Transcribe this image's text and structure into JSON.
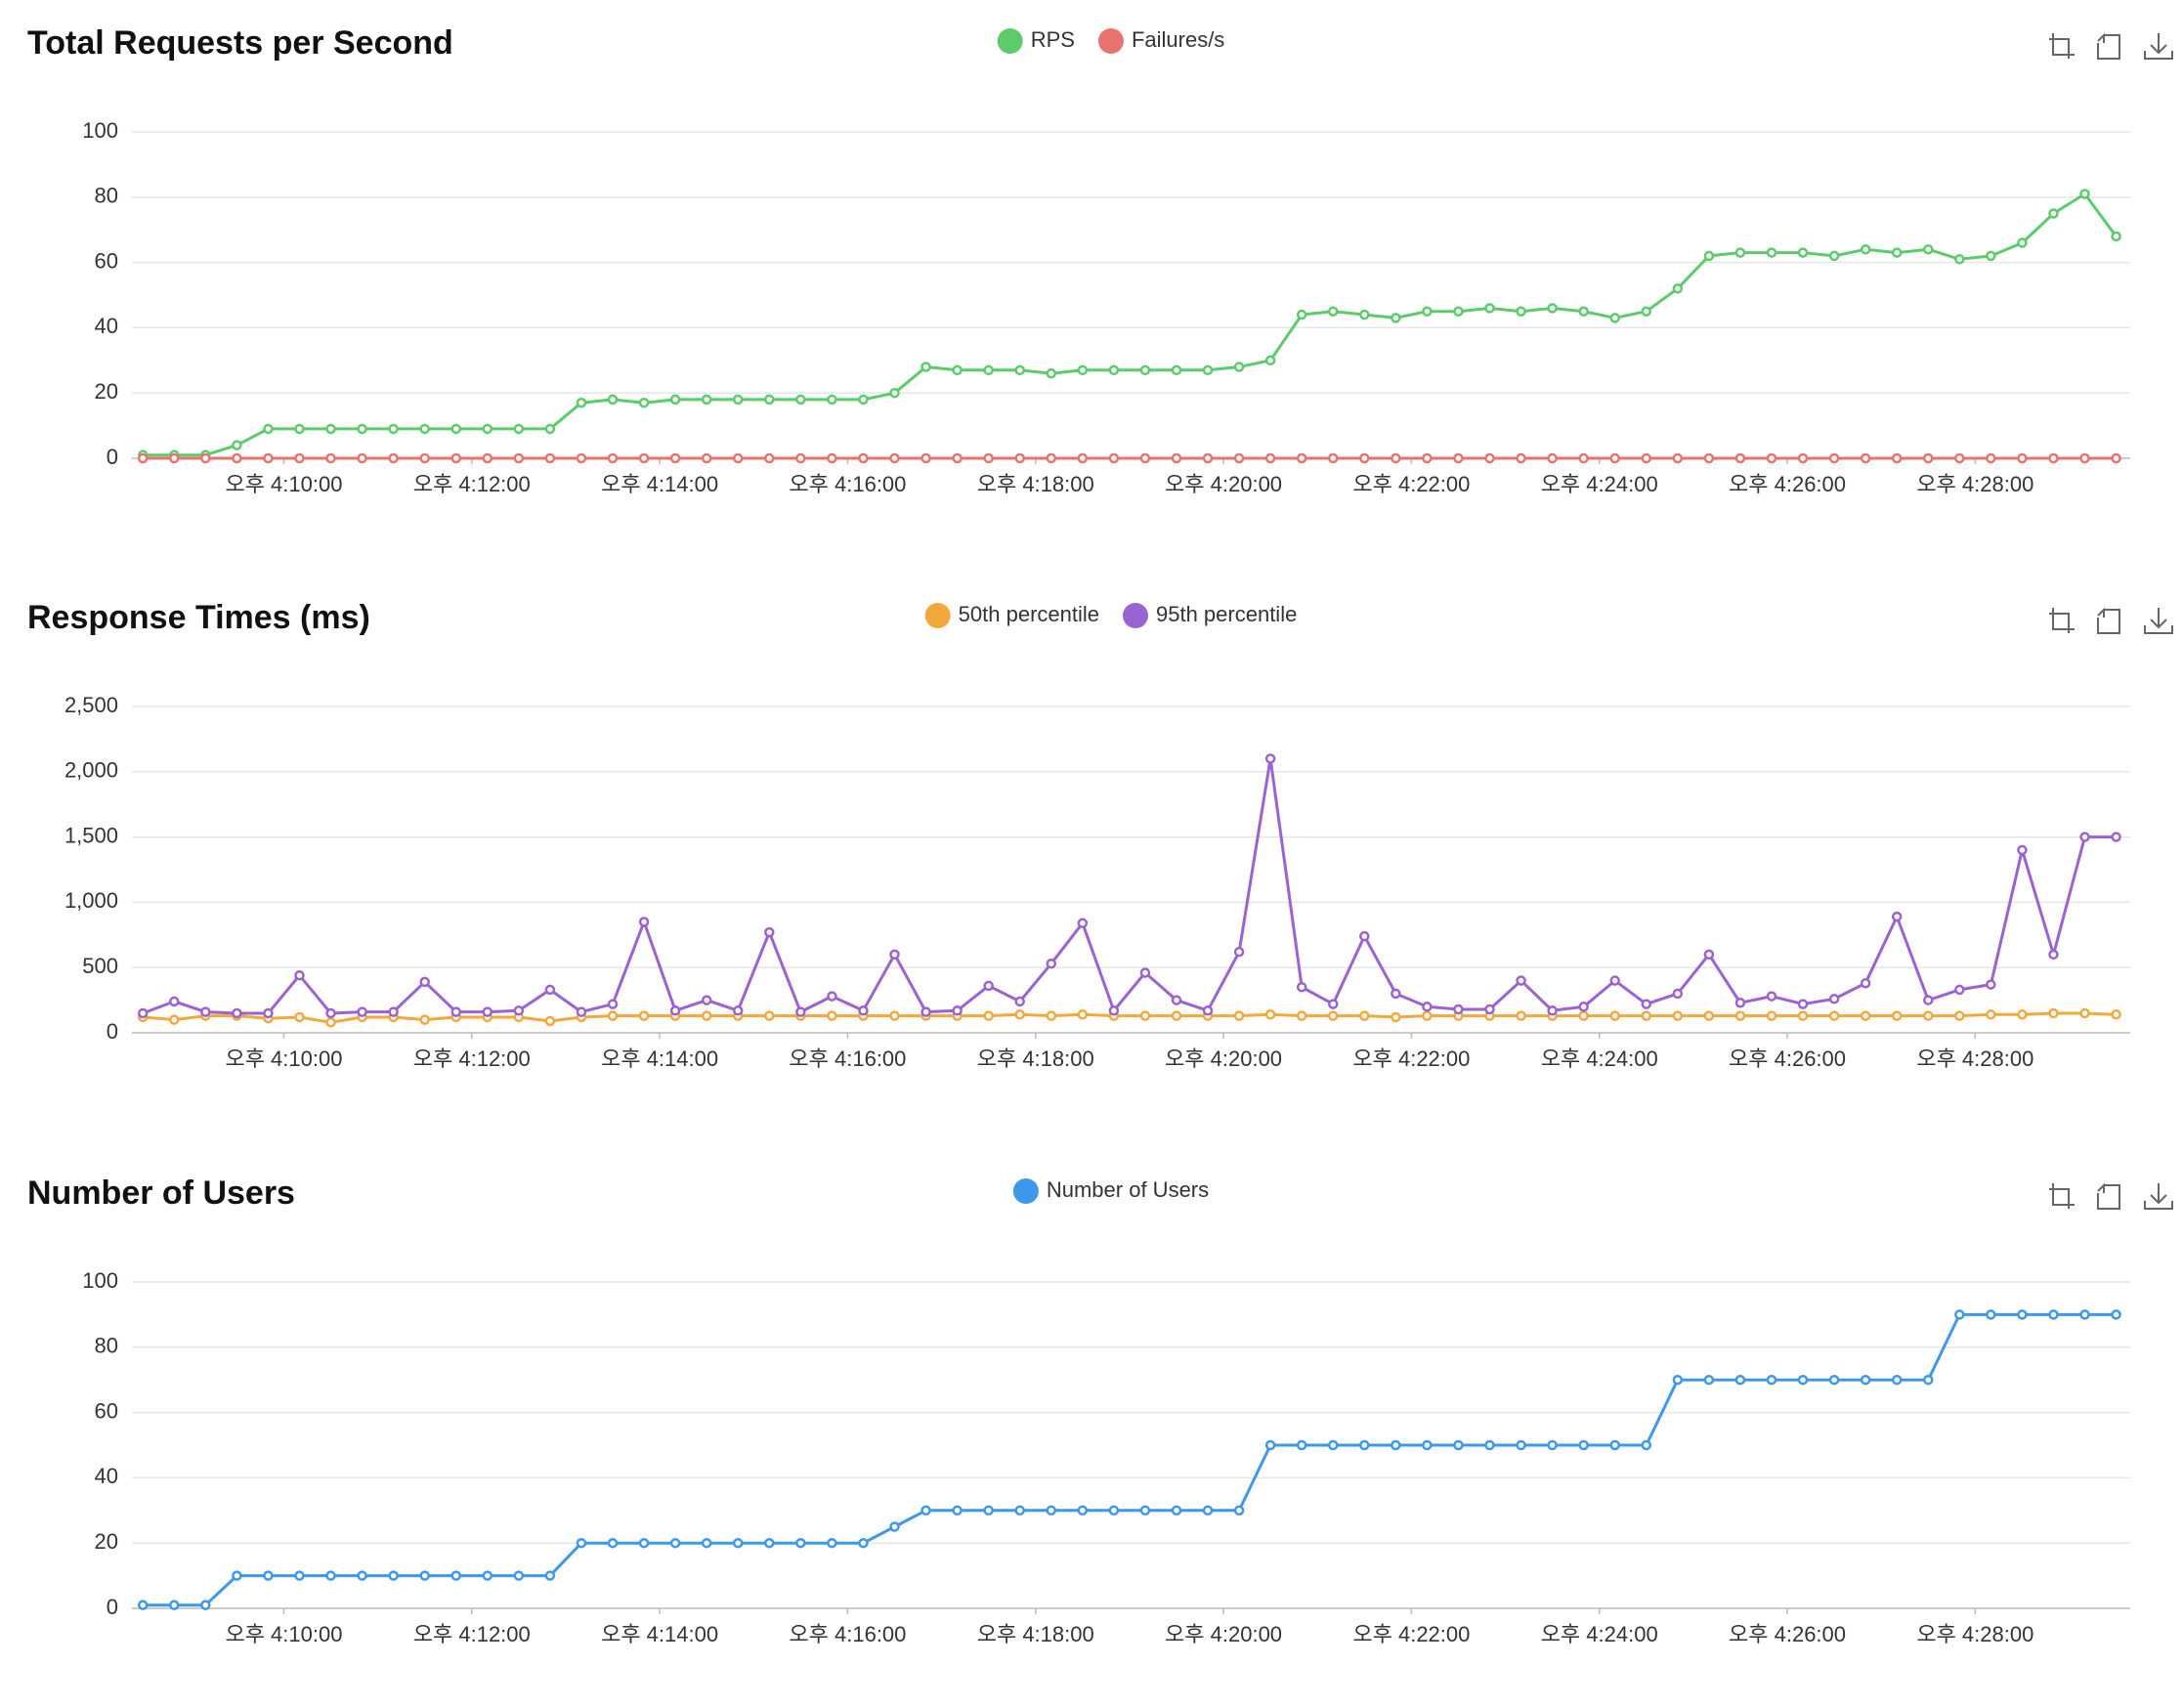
{
  "chart_data": [
    {
      "type": "line",
      "title": "Total Requests per Second",
      "x": [
        "16:08:30",
        "16:08:50",
        "16:09:10",
        "16:09:30",
        "16:09:50",
        "16:10:10",
        "16:10:30",
        "16:10:50",
        "16:11:10",
        "16:11:30",
        "16:11:50",
        "16:12:10",
        "16:12:30",
        "16:12:50",
        "16:13:10",
        "16:13:30",
        "16:13:50",
        "16:14:10",
        "16:14:30",
        "16:14:50",
        "16:15:10",
        "16:15:30",
        "16:15:50",
        "16:16:10",
        "16:16:30",
        "16:16:50",
        "16:17:10",
        "16:17:30",
        "16:17:50",
        "16:18:10",
        "16:18:30",
        "16:18:50",
        "16:19:10",
        "16:19:30",
        "16:19:50",
        "16:20:10",
        "16:20:30",
        "16:20:50",
        "16:21:10",
        "16:21:30",
        "16:21:50",
        "16:22:10",
        "16:22:30",
        "16:22:50",
        "16:23:10",
        "16:23:30",
        "16:23:50",
        "16:24:10",
        "16:24:30",
        "16:24:50",
        "16:25:10",
        "16:25:30",
        "16:25:50",
        "16:26:10",
        "16:26:30",
        "16:26:50",
        "16:27:10",
        "16:27:30",
        "16:27:50",
        "16:28:10",
        "16:28:30",
        "16:28:50",
        "16:29:10",
        "16:29:30"
      ],
      "series": [
        {
          "name": "RPS",
          "color": "#5ccb6a",
          "values": [
            1,
            1,
            1,
            4,
            9,
            9,
            9,
            9,
            9,
            9,
            9,
            9,
            9,
            9,
            17,
            18,
            17,
            18,
            18,
            18,
            18,
            18,
            18,
            18,
            20,
            28,
            27,
            27,
            27,
            26,
            27,
            27,
            27,
            27,
            27,
            28,
            30,
            44,
            45,
            44,
            43,
            45,
            45,
            46,
            45,
            46,
            45,
            43,
            45,
            52,
            62,
            63,
            63,
            63,
            62,
            64,
            63,
            64,
            61,
            62,
            66,
            75,
            81,
            68
          ]
        },
        {
          "name": "Failures/s",
          "color": "#e8736e",
          "values": [
            0,
            0,
            0,
            0,
            0,
            0,
            0,
            0,
            0,
            0,
            0,
            0,
            0,
            0,
            0,
            0,
            0,
            0,
            0,
            0,
            0,
            0,
            0,
            0,
            0,
            0,
            0,
            0,
            0,
            0,
            0,
            0,
            0,
            0,
            0,
            0,
            0,
            0,
            0,
            0,
            0,
            0,
            0,
            0,
            0,
            0,
            0,
            0,
            0,
            0,
            0,
            0,
            0,
            0,
            0,
            0,
            0,
            0,
            0,
            0,
            0,
            0,
            0,
            0
          ]
        }
      ],
      "xlim": [
        "16:08:23",
        "16:29:39"
      ],
      "xticks": [
        {
          "value": "16:10:00",
          "label": "오후 4:10:00"
        },
        {
          "value": "16:12:00",
          "label": "오후 4:12:00"
        },
        {
          "value": "16:14:00",
          "label": "오후 4:14:00"
        },
        {
          "value": "16:16:00",
          "label": "오후 4:16:00"
        },
        {
          "value": "16:18:00",
          "label": "오후 4:18:00"
        },
        {
          "value": "16:20:00",
          "label": "오후 4:20:00"
        },
        {
          "value": "16:22:00",
          "label": "오후 4:22:00"
        },
        {
          "value": "16:24:00",
          "label": "오후 4:24:00"
        },
        {
          "value": "16:26:00",
          "label": "오후 4:26:00"
        },
        {
          "value": "16:28:00",
          "label": "오후 4:28:00"
        }
      ],
      "ylim": [
        0,
        100
      ],
      "yticks": [
        0,
        20,
        40,
        60,
        80,
        100
      ],
      "grid": true
    },
    {
      "type": "line",
      "title": "Response Times (ms)",
      "x": [
        "16:08:30",
        "16:08:50",
        "16:09:10",
        "16:09:30",
        "16:09:50",
        "16:10:10",
        "16:10:30",
        "16:10:50",
        "16:11:10",
        "16:11:30",
        "16:11:50",
        "16:12:10",
        "16:12:30",
        "16:12:50",
        "16:13:10",
        "16:13:30",
        "16:13:50",
        "16:14:10",
        "16:14:30",
        "16:14:50",
        "16:15:10",
        "16:15:30",
        "16:15:50",
        "16:16:10",
        "16:16:30",
        "16:16:50",
        "16:17:10",
        "16:17:30",
        "16:17:50",
        "16:18:10",
        "16:18:30",
        "16:18:50",
        "16:19:10",
        "16:19:30",
        "16:19:50",
        "16:20:10",
        "16:20:30",
        "16:20:50",
        "16:21:10",
        "16:21:30",
        "16:21:50",
        "16:22:10",
        "16:22:30",
        "16:22:50",
        "16:23:10",
        "16:23:30",
        "16:23:50",
        "16:24:10",
        "16:24:30",
        "16:24:50",
        "16:25:10",
        "16:25:30",
        "16:25:50",
        "16:26:10",
        "16:26:30",
        "16:26:50",
        "16:27:10",
        "16:27:30",
        "16:27:50",
        "16:28:10",
        "16:28:30",
        "16:28:50",
        "16:29:10",
        "16:29:30"
      ],
      "series": [
        {
          "name": "50th percentile",
          "color": "#f2a83b",
          "values": [
            120,
            100,
            130,
            130,
            110,
            120,
            80,
            120,
            120,
            100,
            120,
            120,
            120,
            90,
            120,
            130,
            130,
            130,
            130,
            130,
            130,
            130,
            130,
            130,
            130,
            130,
            130,
            130,
            140,
            130,
            140,
            130,
            130,
            130,
            130,
            130,
            140,
            130,
            130,
            130,
            120,
            130,
            130,
            130,
            130,
            130,
            130,
            130,
            130,
            130,
            130,
            130,
            130,
            130,
            130,
            130,
            130,
            130,
            130,
            140,
            140,
            150,
            150,
            140
          ]
        },
        {
          "name": "95th percentile",
          "color": "#9b63d2",
          "values": [
            150,
            240,
            160,
            150,
            150,
            440,
            150,
            160,
            160,
            390,
            160,
            160,
            170,
            330,
            160,
            220,
            850,
            170,
            250,
            170,
            770,
            160,
            280,
            170,
            600,
            160,
            170,
            360,
            240,
            530,
            840,
            170,
            460,
            250,
            170,
            620,
            2100,
            350,
            220,
            740,
            300,
            200,
            180,
            180,
            400,
            170,
            200,
            400,
            220,
            300,
            600,
            230,
            280,
            220,
            260,
            380,
            890,
            250,
            330,
            370,
            1400,
            600,
            1500,
            1500
          ]
        }
      ],
      "xlim": [
        "16:08:23",
        "16:29:39"
      ],
      "xticks": [
        {
          "value": "16:10:00",
          "label": "오후 4:10:00"
        },
        {
          "value": "16:12:00",
          "label": "오후 4:12:00"
        },
        {
          "value": "16:14:00",
          "label": "오후 4:14:00"
        },
        {
          "value": "16:16:00",
          "label": "오후 4:16:00"
        },
        {
          "value": "16:18:00",
          "label": "오후 4:18:00"
        },
        {
          "value": "16:20:00",
          "label": "오후 4:20:00"
        },
        {
          "value": "16:22:00",
          "label": "오후 4:22:00"
        },
        {
          "value": "16:24:00",
          "label": "오후 4:24:00"
        },
        {
          "value": "16:26:00",
          "label": "오후 4:26:00"
        },
        {
          "value": "16:28:00",
          "label": "오후 4:28:00"
        }
      ],
      "ylim": [
        0,
        2500
      ],
      "yticks": [
        0,
        500,
        {
          "value": 1000,
          "label": "1,000"
        },
        {
          "value": 1500,
          "label": "1,500"
        },
        {
          "value": 2000,
          "label": "2,000"
        },
        {
          "value": 2500,
          "label": "2,500"
        }
      ],
      "grid": true
    },
    {
      "type": "line",
      "title": "Number of Users",
      "x": [
        "16:08:30",
        "16:08:50",
        "16:09:10",
        "16:09:30",
        "16:09:50",
        "16:10:10",
        "16:10:30",
        "16:10:50",
        "16:11:10",
        "16:11:30",
        "16:11:50",
        "16:12:10",
        "16:12:30",
        "16:12:50",
        "16:13:10",
        "16:13:30",
        "16:13:50",
        "16:14:10",
        "16:14:30",
        "16:14:50",
        "16:15:10",
        "16:15:30",
        "16:15:50",
        "16:16:10",
        "16:16:30",
        "16:16:50",
        "16:17:10",
        "16:17:30",
        "16:17:50",
        "16:18:10",
        "16:18:30",
        "16:18:50",
        "16:19:10",
        "16:19:30",
        "16:19:50",
        "16:20:10",
        "16:20:30",
        "16:20:50",
        "16:21:10",
        "16:21:30",
        "16:21:50",
        "16:22:10",
        "16:22:30",
        "16:22:50",
        "16:23:10",
        "16:23:30",
        "16:23:50",
        "16:24:10",
        "16:24:30",
        "16:24:50",
        "16:25:10",
        "16:25:30",
        "16:25:50",
        "16:26:10",
        "16:26:30",
        "16:26:50",
        "16:27:10",
        "16:27:30",
        "16:27:50",
        "16:28:10",
        "16:28:30",
        "16:28:50",
        "16:29:10",
        "16:29:30"
      ],
      "series": [
        {
          "name": "Number of Users",
          "color": "#3e98ea",
          "values": [
            1,
            1,
            1,
            10,
            10,
            10,
            10,
            10,
            10,
            10,
            10,
            10,
            10,
            10,
            20,
            20,
            20,
            20,
            20,
            20,
            20,
            20,
            20,
            20,
            25,
            30,
            30,
            30,
            30,
            30,
            30,
            30,
            30,
            30,
            30,
            30,
            50,
            50,
            50,
            50,
            50,
            50,
            50,
            50,
            50,
            50,
            50,
            50,
            50,
            70,
            70,
            70,
            70,
            70,
            70,
            70,
            70,
            70,
            90,
            90,
            90,
            90,
            90,
            90
          ]
        }
      ],
      "xlim": [
        "16:08:23",
        "16:29:39"
      ],
      "xticks": [
        {
          "value": "16:10:00",
          "label": "오후 4:10:00"
        },
        {
          "value": "16:12:00",
          "label": "오후 4:12:00"
        },
        {
          "value": "16:14:00",
          "label": "오후 4:14:00"
        },
        {
          "value": "16:16:00",
          "label": "오후 4:16:00"
        },
        {
          "value": "16:18:00",
          "label": "오후 4:18:00"
        },
        {
          "value": "16:20:00",
          "label": "오후 4:20:00"
        },
        {
          "value": "16:22:00",
          "label": "오후 4:22:00"
        },
        {
          "value": "16:24:00",
          "label": "오후 4:24:00"
        },
        {
          "value": "16:26:00",
          "label": "오후 4:26:00"
        },
        {
          "value": "16:28:00",
          "label": "오후 4:28:00"
        }
      ],
      "ylim": [
        0,
        100
      ],
      "yticks": [
        0,
        20,
        40,
        60,
        80,
        100
      ],
      "grid": true
    }
  ]
}
